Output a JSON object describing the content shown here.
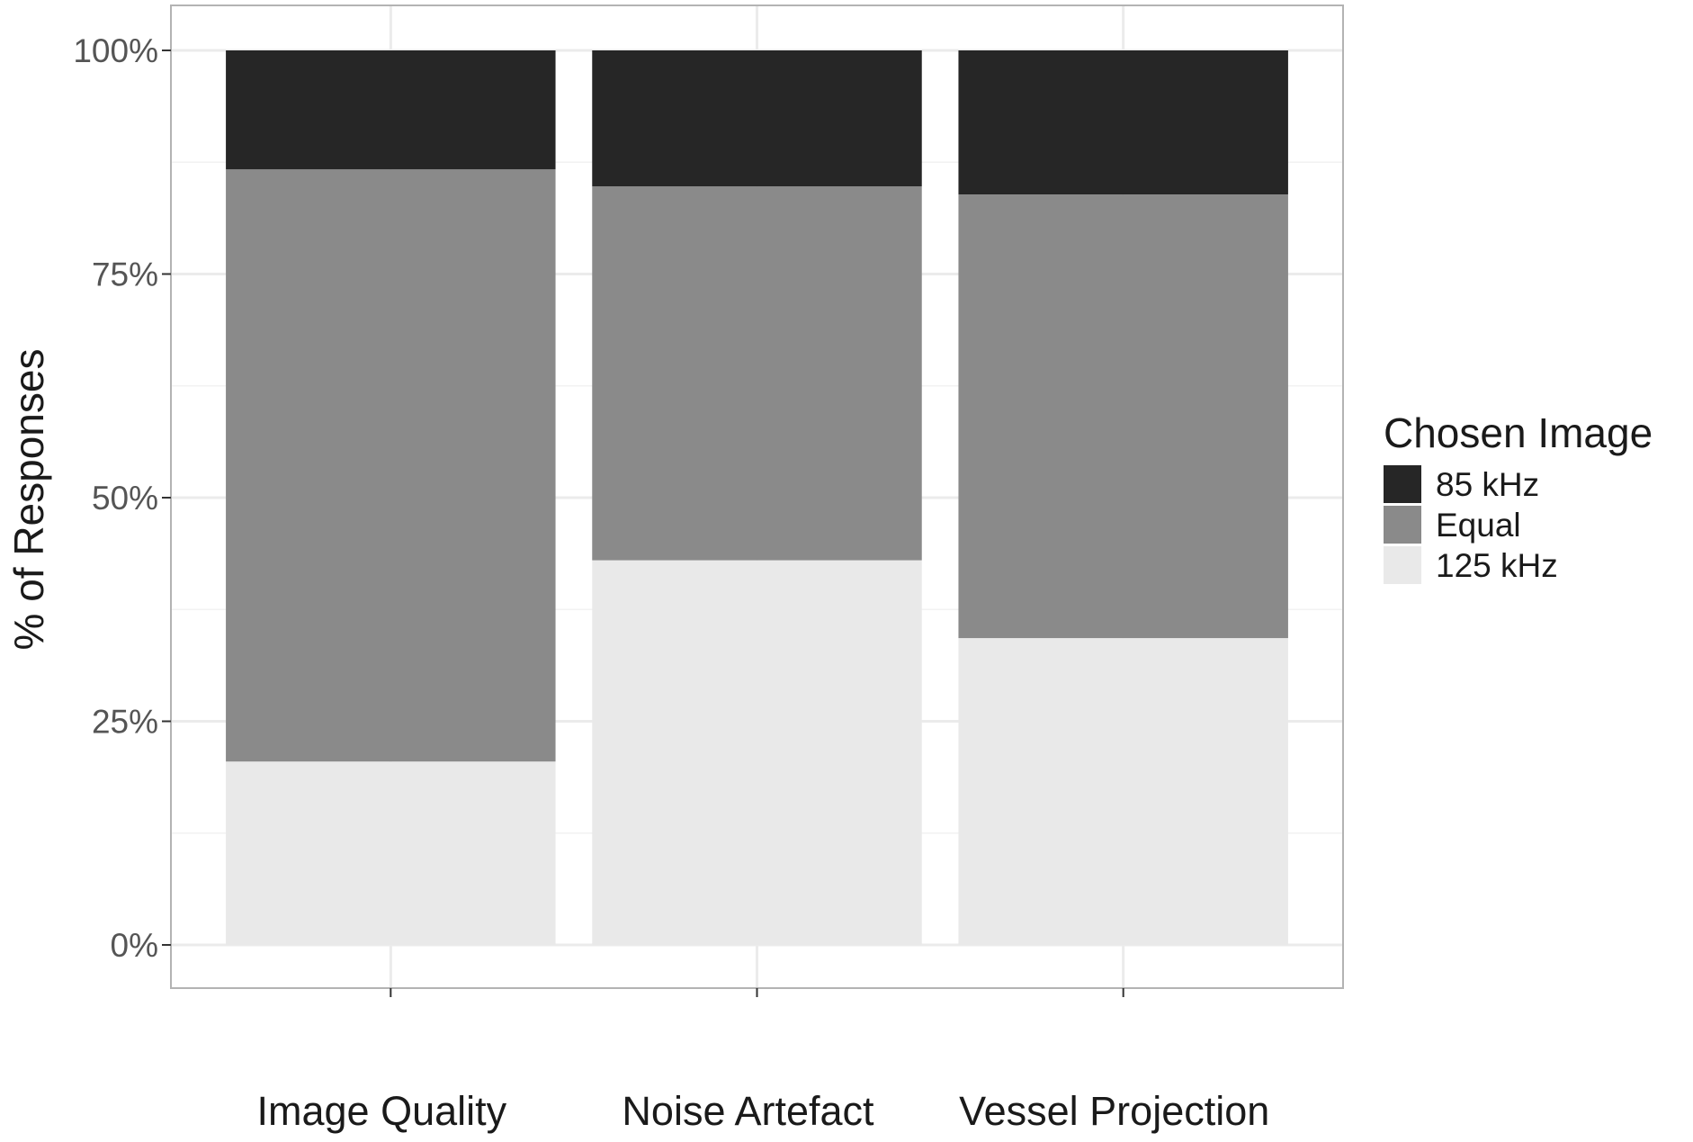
{
  "chart_data": {
    "type": "bar",
    "stacked": true,
    "categories": [
      "Image Quality",
      "Noise Artefact",
      "Vessel Projection"
    ],
    "series": [
      {
        "name": "125 kHz",
        "values": [
          20.5,
          43.0,
          34.3
        ],
        "color": "#e9e9e9"
      },
      {
        "name": "Equal",
        "values": [
          66.2,
          41.8,
          49.6
        ],
        "color": "#8a8a8a"
      },
      {
        "name": "85 kHz",
        "values": [
          13.3,
          15.2,
          16.1
        ],
        "color": "#262626"
      }
    ],
    "ylabel": "% of Responses",
    "ylim": [
      0,
      100
    ],
    "yticks": [
      "0%",
      "25%",
      "50%",
      "75%",
      "100%"
    ],
    "ytick_values": [
      0,
      25,
      50,
      75,
      100
    ],
    "legend": {
      "title": "Chosen Image",
      "order": [
        "85 kHz",
        "Equal",
        "125 kHz"
      ],
      "placement": "right"
    },
    "grid": true
  }
}
